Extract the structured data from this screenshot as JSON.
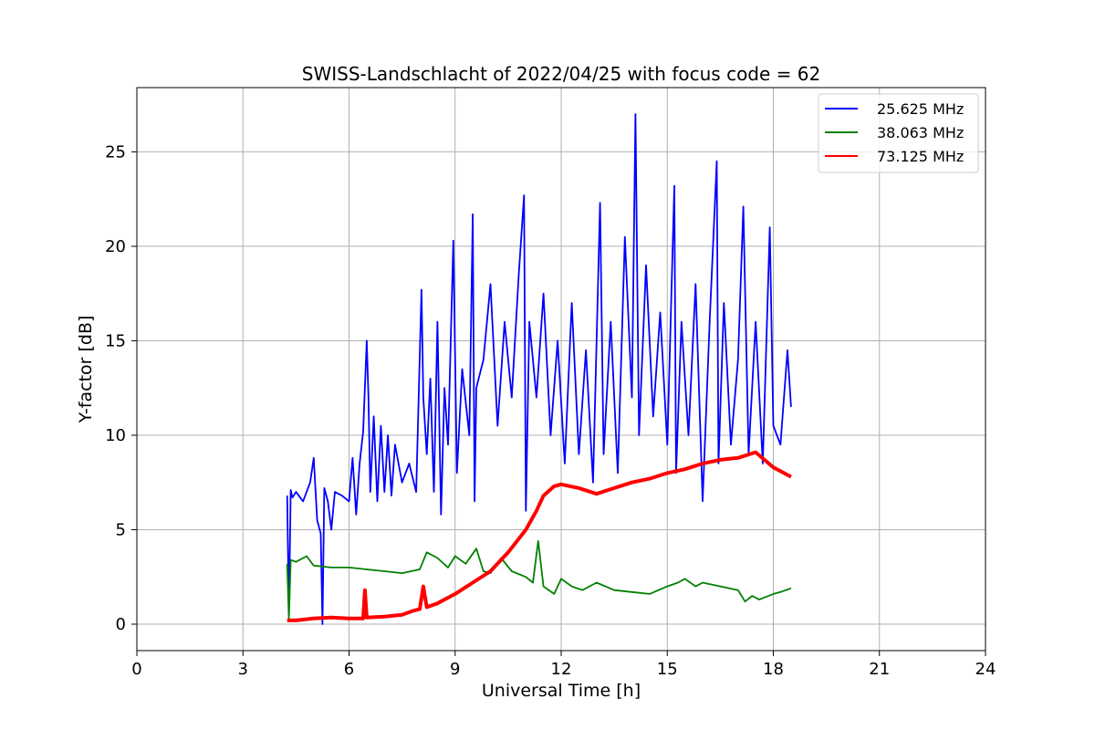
{
  "chart_data": {
    "type": "line",
    "title": "SWISS-Landschlacht of 2022/04/25 with focus code = 62",
    "xlabel": "Universal Time [h]",
    "ylabel": "Y-factor [dB]",
    "xlim": [
      0,
      24
    ],
    "ylim": [
      -1.4,
      28.4
    ],
    "xticks": [
      0,
      3,
      6,
      9,
      12,
      15,
      18,
      21,
      24
    ],
    "yticks": [
      0,
      5,
      10,
      15,
      20,
      25
    ],
    "grid": true,
    "legend_position": "top-right",
    "series": [
      {
        "name": "25.625 MHz",
        "color": "#0000ff",
        "x": [
          4.25,
          4.3,
          4.35,
          4.4,
          4.5,
          4.7,
          4.9,
          5.0,
          5.1,
          5.2,
          5.25,
          5.3,
          5.4,
          5.5,
          5.6,
          5.8,
          6.0,
          6.1,
          6.2,
          6.3,
          6.4,
          6.5,
          6.55,
          6.6,
          6.7,
          6.8,
          6.9,
          7.0,
          7.1,
          7.2,
          7.3,
          7.5,
          7.7,
          7.9,
          8.05,
          8.1,
          8.2,
          8.3,
          8.4,
          8.5,
          8.6,
          8.7,
          8.8,
          8.95,
          9.05,
          9.2,
          9.4,
          9.5,
          9.55,
          9.6,
          9.8,
          10.0,
          10.2,
          10.4,
          10.6,
          10.8,
          10.95,
          11.0,
          11.1,
          11.3,
          11.5,
          11.7,
          11.9,
          12.1,
          12.3,
          12.5,
          12.7,
          12.9,
          13.1,
          13.2,
          13.4,
          13.6,
          13.8,
          14.0,
          14.1,
          14.2,
          14.4,
          14.6,
          14.8,
          15.0,
          15.2,
          15.25,
          15.4,
          15.6,
          15.8,
          16.0,
          16.2,
          16.4,
          16.45,
          16.6,
          16.8,
          17.0,
          17.15,
          17.3,
          17.5,
          17.7,
          17.9,
          18.0,
          18.2,
          18.4,
          18.5
        ],
        "values": [
          6.8,
          0.5,
          7.1,
          6.7,
          7.0,
          6.5,
          7.5,
          8.8,
          5.5,
          4.8,
          0.0,
          7.2,
          6.5,
          5.0,
          7.0,
          6.8,
          6.5,
          8.8,
          5.8,
          8.5,
          10.2,
          15.0,
          12.0,
          7.0,
          11.0,
          6.5,
          10.5,
          7.0,
          10.0,
          6.8,
          9.5,
          7.5,
          8.5,
          7.0,
          17.7,
          12.0,
          9.0,
          13.0,
          7.0,
          16.0,
          5.8,
          12.5,
          9.5,
          20.3,
          8.0,
          13.5,
          10.0,
          21.7,
          6.5,
          12.5,
          14.0,
          18.0,
          10.5,
          16.0,
          12.0,
          18.5,
          22.7,
          6.0,
          16.0,
          12.0,
          17.5,
          10.0,
          15.0,
          8.5,
          17.0,
          9.0,
          14.5,
          7.5,
          22.3,
          9.0,
          16.0,
          8.0,
          20.5,
          12.0,
          27.0,
          10.0,
          19.0,
          11.0,
          16.5,
          9.5,
          23.2,
          8.0,
          16.0,
          10.0,
          18.0,
          6.5,
          16.0,
          24.5,
          8.5,
          17.0,
          9.5,
          14.0,
          22.1,
          9.0,
          16.0,
          8.5,
          21.0,
          10.5,
          9.5,
          14.5,
          11.5
        ]
      },
      {
        "name": "38.063 MHz",
        "color": "#008000",
        "x": [
          4.25,
          4.3,
          4.35,
          4.5,
          4.8,
          5.0,
          5.5,
          6.0,
          6.5,
          7.0,
          7.5,
          8.0,
          8.2,
          8.5,
          8.8,
          9.0,
          9.3,
          9.6,
          9.8,
          10.0,
          10.3,
          10.6,
          11.0,
          11.2,
          11.35,
          11.5,
          11.8,
          12.0,
          12.3,
          12.6,
          13.0,
          13.5,
          14.0,
          14.5,
          15.0,
          15.3,
          15.5,
          15.8,
          16.0,
          16.5,
          17.0,
          17.2,
          17.4,
          17.6,
          18.0,
          18.2,
          18.5
        ],
        "values": [
          3.2,
          0.3,
          3.4,
          3.3,
          3.6,
          3.1,
          3.0,
          3.0,
          2.9,
          2.8,
          2.7,
          2.9,
          3.8,
          3.5,
          3.0,
          3.6,
          3.2,
          4.0,
          2.8,
          2.7,
          3.5,
          2.8,
          2.5,
          2.2,
          4.4,
          2.0,
          1.6,
          2.4,
          2.0,
          1.8,
          2.2,
          1.8,
          1.7,
          1.6,
          2.0,
          2.2,
          2.4,
          2.0,
          2.2,
          2.0,
          1.8,
          1.2,
          1.5,
          1.3,
          1.6,
          1.7,
          1.9
        ]
      },
      {
        "name": "73.125 MHz",
        "color": "#ff0000",
        "x": [
          4.25,
          4.5,
          5.0,
          5.5,
          6.0,
          6.4,
          6.45,
          6.5,
          7.0,
          7.5,
          7.8,
          8.0,
          8.1,
          8.2,
          8.5,
          9.0,
          9.5,
          10.0,
          10.5,
          11.0,
          11.3,
          11.5,
          11.8,
          12.0,
          12.5,
          13.0,
          13.5,
          14.0,
          14.5,
          15.0,
          15.5,
          16.0,
          16.5,
          17.0,
          17.5,
          18.0,
          18.5
        ],
        "values": [
          0.2,
          0.2,
          0.3,
          0.35,
          0.3,
          0.3,
          1.8,
          0.35,
          0.4,
          0.5,
          0.7,
          0.8,
          2.0,
          0.9,
          1.1,
          1.6,
          2.2,
          2.8,
          3.8,
          5.0,
          6.0,
          6.8,
          7.3,
          7.4,
          7.2,
          6.9,
          7.2,
          7.5,
          7.7,
          8.0,
          8.2,
          8.5,
          8.7,
          8.8,
          9.1,
          8.3,
          7.8
        ]
      }
    ]
  }
}
